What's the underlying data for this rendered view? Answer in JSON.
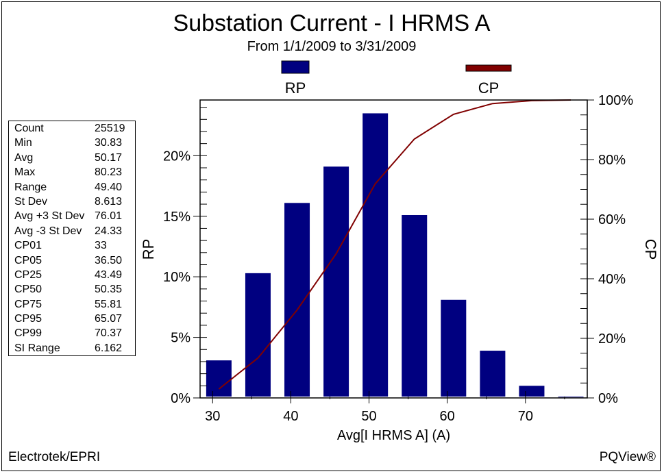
{
  "footer": {
    "left": "Electrotek/EPRI",
    "right": "PQView®"
  },
  "stats": [
    {
      "label": "Count",
      "value": "25519"
    },
    {
      "label": "Min",
      "value": "30.83"
    },
    {
      "label": "Avg",
      "value": "50.17"
    },
    {
      "label": "Max",
      "value": "80.23"
    },
    {
      "label": "Range",
      "value": "49.40"
    },
    {
      "label": "St Dev",
      "value": "8.613"
    },
    {
      "label": "Avg +3 St Dev",
      "value": "76.01"
    },
    {
      "label": "Avg -3 St Dev",
      "value": "24.33"
    },
    {
      "label": "CP01",
      "value": "33"
    },
    {
      "label": "CP05",
      "value": "36.50"
    },
    {
      "label": "CP25",
      "value": "43.49"
    },
    {
      "label": "CP50",
      "value": "50.35"
    },
    {
      "label": "CP75",
      "value": "55.81"
    },
    {
      "label": "CP95",
      "value": "65.07"
    },
    {
      "label": "CP99",
      "value": "70.37"
    },
    {
      "label": "SI Range",
      "value": "6.162"
    }
  ],
  "chart_data": {
    "type": "bar",
    "title": "Substation Current - I HRMS A",
    "subtitle": "From 1/1/2009 to 3/31/2009",
    "xlabel": "Avg[I HRMS A] (A)",
    "ylabel": "RP",
    "y2label": "CP",
    "xlim": [
      28.4,
      77.9
    ],
    "ylim": [
      0,
      24.6
    ],
    "y2lim": [
      0,
      100
    ],
    "xticks": [
      "30",
      "40",
      "50",
      "60",
      "70"
    ],
    "xtick_values": [
      30,
      40,
      50,
      60,
      70
    ],
    "yticks": [
      "0%",
      "5%",
      "10%",
      "15%",
      "20%"
    ],
    "ytick_values": [
      0,
      5,
      10,
      15,
      20
    ],
    "y2ticks": [
      "0%",
      "20%",
      "40%",
      "60%",
      "80%",
      "100%"
    ],
    "y2tick_values": [
      0,
      20,
      40,
      60,
      80,
      100
    ],
    "legend_placement": "top",
    "grid": false,
    "x": [
      30.8,
      35.8,
      40.8,
      45.8,
      50.8,
      55.8,
      60.8,
      65.8,
      70.8,
      75.8
    ],
    "series": [
      {
        "name": "RP",
        "type": "bar",
        "axis": "left",
        "color": "#000080",
        "values": [
          3.1,
          10.3,
          16.1,
          19.1,
          23.5,
          15.1,
          8.1,
          3.9,
          1.0,
          0.1
        ]
      },
      {
        "name": "CP",
        "type": "line",
        "axis": "right",
        "color": "#800000",
        "values": [
          3.0,
          13.4,
          29.5,
          48.4,
          71.9,
          86.9,
          95.2,
          98.8,
          99.8,
          100
        ]
      }
    ]
  }
}
